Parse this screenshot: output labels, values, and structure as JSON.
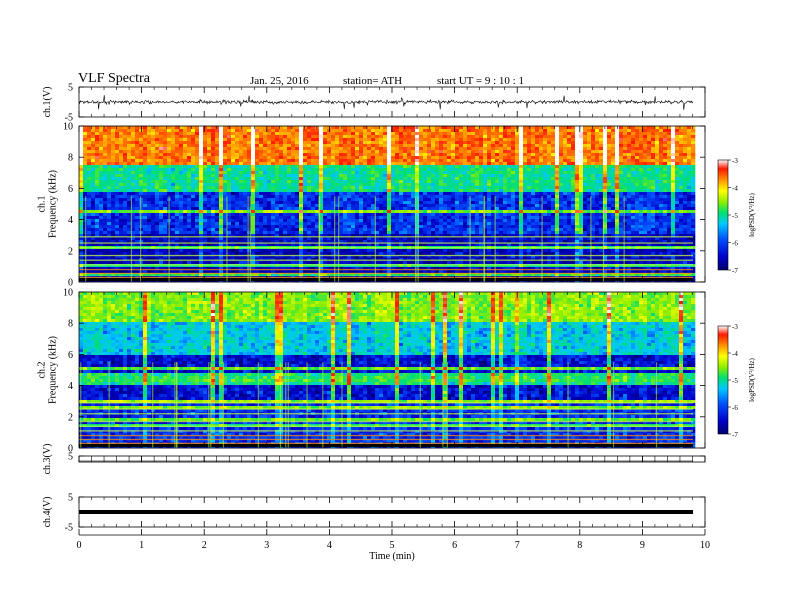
{
  "header": {
    "title": "VLF  Spectra",
    "date": "Jan. 25, 2016",
    "station": "station= ATH",
    "start": "start  UT  =   9  : 10 : 1"
  },
  "colors": {
    "colormap": [
      "#000070",
      "#0000c8",
      "#0050ff",
      "#00c8ff",
      "#00e070",
      "#90ee00",
      "#ffff00",
      "#ff9000",
      "#ff1800",
      "#ffffff"
    ]
  },
  "chart_data": [
    {
      "type": "line",
      "ylabel": "ch.1(V)",
      "ylim": [
        -5,
        5
      ],
      "y_ticks": [
        "5",
        "-5"
      ],
      "description_values": "wideband noise trace centred near 0 V, amplitude about 1 V with spikes up to ±3 V"
    },
    {
      "type": "heatmap",
      "ylabel": "ch.1\nFrequency  (kHz)",
      "ylim": [
        0,
        10
      ],
      "y_ticks": [
        "0",
        "2",
        "4",
        "6",
        "8",
        "10"
      ],
      "colorbar": {
        "label": "logPSD(V²/Hz)",
        "range": [
          -7,
          -3
        ],
        "ticks": [
          "-3",
          "-4",
          "-5",
          "-6",
          "-7"
        ]
      },
      "bands": [
        {
          "freq_khz": [
            0,
            3
          ],
          "log_psd": -6.6
        },
        {
          "freq_khz": [
            3,
            5.8
          ],
          "log_psd": -6.3
        },
        {
          "freq_khz": [
            5.8,
            7.5
          ],
          "log_psd": -5.3
        },
        {
          "freq_khz": [
            7.5,
            10
          ],
          "log_psd": -3.8
        }
      ]
    },
    {
      "type": "heatmap",
      "ylabel": "ch.2\nFrequency  (kHz)",
      "ylim": [
        0,
        10
      ],
      "y_ticks": [
        "0",
        "2",
        "4",
        "6",
        "8",
        "10"
      ],
      "colorbar": {
        "label": "logPSD(V²/Hz)",
        "range": [
          -7,
          -3
        ],
        "ticks": [
          "-3",
          "-4",
          "-5",
          "-6",
          "-7"
        ]
      },
      "bands": [
        {
          "freq_khz": [
            0,
            3
          ],
          "log_psd": -6.3
        },
        {
          "freq_khz": [
            3,
            6
          ],
          "log_psd": -6.5
        },
        {
          "freq_khz": [
            6,
            8
          ],
          "log_psd": -5.6
        },
        {
          "freq_khz": [
            8,
            10
          ],
          "log_psd": -4.8
        }
      ]
    },
    {
      "type": "line",
      "ylabel": "ch.3(V)",
      "ylim": [
        -5,
        5
      ],
      "y_ticks": [
        "5"
      ],
      "values_note": "flat near +1 V"
    },
    {
      "type": "line",
      "ylabel": "ch.4(V)",
      "ylim": [
        -5,
        5
      ],
      "y_ticks": [
        "5",
        "-5"
      ],
      "values_note": "flat near 0 V"
    }
  ],
  "x_axis": {
    "label": "Time  (min)",
    "range": [
      0,
      10
    ],
    "data_end": 9.8,
    "ticks": [
      "0",
      "1",
      "2",
      "3",
      "4",
      "5",
      "6",
      "7",
      "8",
      "9",
      "10"
    ]
  },
  "colorbar_label": "logPSD(V²/Hz)"
}
